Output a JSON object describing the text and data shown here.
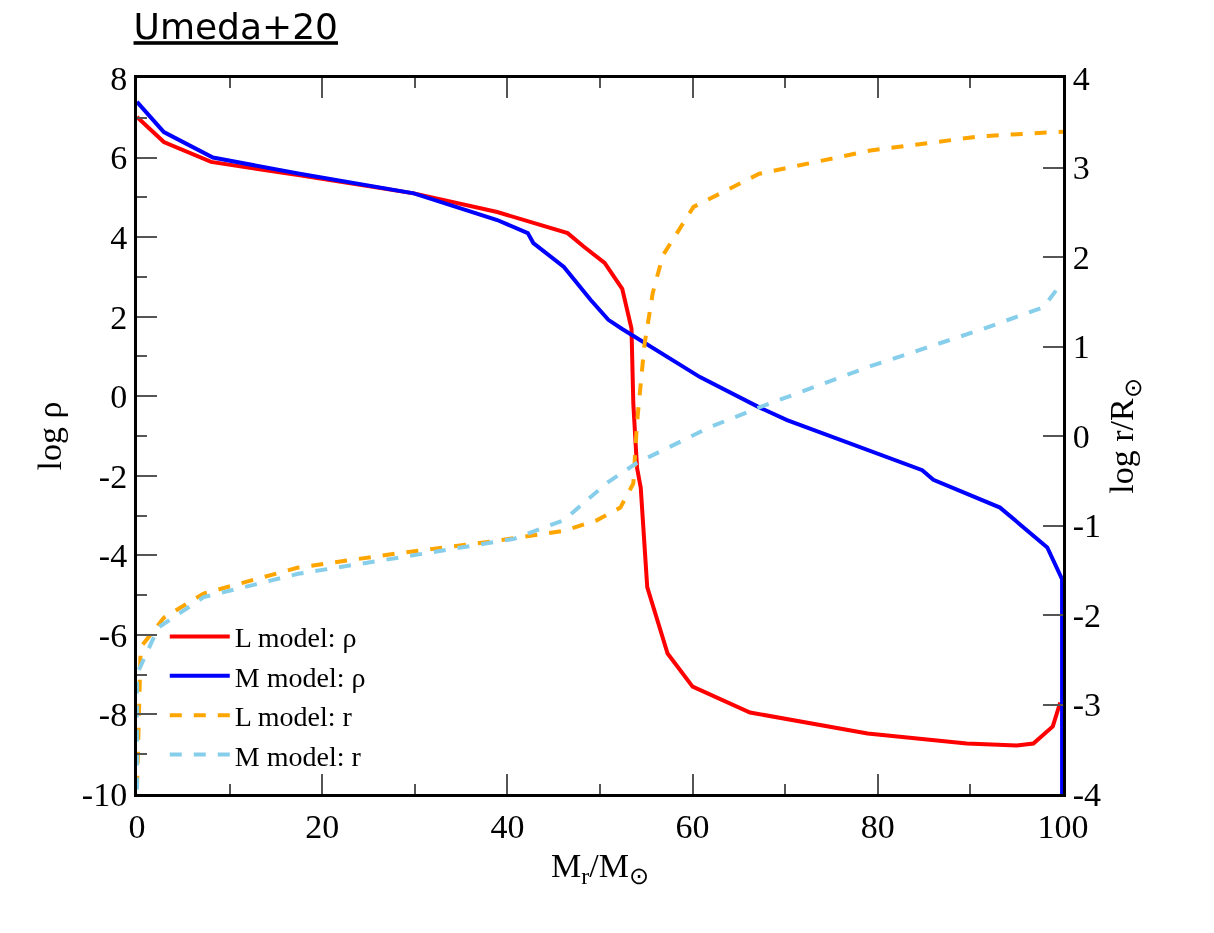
{
  "chart_data": {
    "type": "line",
    "title": "Umeda+20",
    "xlabel": "M$_{r}$/M$_{⊙}$",
    "ylabel": "log ρ",
    "y2label": "log r/R$_{⊙}$",
    "xlim": [
      0,
      100
    ],
    "xticks": [
      0,
      {
        "value": 10,
        "label": null
      },
      20,
      {
        "value": 30,
        "label": null
      },
      40,
      {
        "value": 50,
        "label": null
      },
      60,
      {
        "value": 70,
        "label": null
      },
      80,
      {
        "value": 90,
        "label": null
      },
      100
    ],
    "ylim": [
      -10,
      8
    ],
    "yticks": [
      -10,
      {
        "value": -9,
        "label": null
      },
      -8,
      {
        "value": -7,
        "label": null
      },
      -6,
      {
        "value": -5,
        "label": null
      },
      -4,
      {
        "value": -3,
        "label": null
      },
      -2,
      {
        "value": -1,
        "label": null
      },
      0,
      {
        "value": 1,
        "label": null
      },
      2,
      {
        "value": 3,
        "label": null
      },
      4,
      {
        "value": 5,
        "label": null
      },
      6,
      {
        "value": 7,
        "label": null
      },
      8
    ],
    "y2lim": [
      -4,
      4
    ],
    "y2ticks": [
      -4,
      -3,
      -2,
      -1,
      0,
      1,
      2,
      3,
      4
    ],
    "legend": "bottom left",
    "marker": "none",
    "series": [
      {
        "name": "L model: ρ",
        "color": "#ff0000",
        "line_style": "solid",
        "x": [
          0,
          2.9,
          8,
          17.4,
          29.9,
          38.9,
          46.5,
          48.2,
          50.5,
          52.4,
          53.4,
          53.6,
          54.0,
          54.4,
          55.1,
          57.3,
          60,
          66.2,
          78.9,
          89.6,
          95.0,
          96.8,
          98.9,
          99.7
        ],
        "values": [
          7.02,
          6.39,
          5.89,
          5.56,
          5.1,
          4.63,
          4.1,
          3.77,
          3.35,
          2.7,
          1.7,
          -0.2,
          -1.8,
          -2.3,
          -4.8,
          -6.47,
          -7.3,
          -7.95,
          -8.48,
          -8.73,
          -8.78,
          -8.73,
          -8.3,
          -7.7
        ]
      },
      {
        "name": "M model: ρ",
        "color": "#0000ff",
        "line_style": "solid",
        "x": [
          0,
          2.9,
          8.2,
          17.4,
          29.9,
          38.9,
          42.2,
          42.8,
          46.1,
          49,
          50.9,
          52.4,
          60.8,
          67.2,
          70.2,
          84.8,
          86,
          93.2,
          98.3,
          99.9,
          99.9
        ],
        "values": [
          7.4,
          6.64,
          6.0,
          5.6,
          5.1,
          4.43,
          4.1,
          3.85,
          3.25,
          2.42,
          1.92,
          1.69,
          0.48,
          -0.28,
          -0.6,
          -1.86,
          -2.1,
          -2.8,
          -3.8,
          -4.6,
          -10
        ]
      },
      {
        "name": "L model: r",
        "color": "#ffa500",
        "line_style": "dashed",
        "axis": "y2",
        "x": [
          0,
          0.4,
          2.9,
          7.2,
          17.4,
          28.2,
          38.9,
          46.1,
          49.7,
          52.2,
          53.6,
          54.0,
          54.8,
          55.7,
          56.8,
          60.1,
          67.2,
          79.2,
          91.2,
          100
        ],
        "values": [
          -3.93,
          -2.36,
          -2.03,
          -1.76,
          -1.47,
          -1.31,
          -1.17,
          -1.06,
          -0.94,
          -0.8,
          -0.53,
          0.15,
          1.02,
          1.6,
          2.02,
          2.56,
          2.93,
          3.19,
          3.35,
          3.4
        ]
      },
      {
        "name": "M model: r",
        "color": "#87ceeb",
        "line_style": "dashed",
        "axis": "y2",
        "x": [
          0,
          0,
          2.3,
          7.2,
          17.4,
          28.2,
          40.7,
          46.1,
          50.8,
          54,
          61.9,
          67.2,
          79.2,
          91.2,
          97.9,
          100
        ],
        "values": [
          -3.95,
          -2.66,
          -2.14,
          -1.8,
          -1.54,
          -1.36,
          -1.15,
          -0.94,
          -0.52,
          -0.3,
          0.1,
          0.32,
          0.78,
          1.19,
          1.44,
          1.73
        ]
      }
    ]
  }
}
